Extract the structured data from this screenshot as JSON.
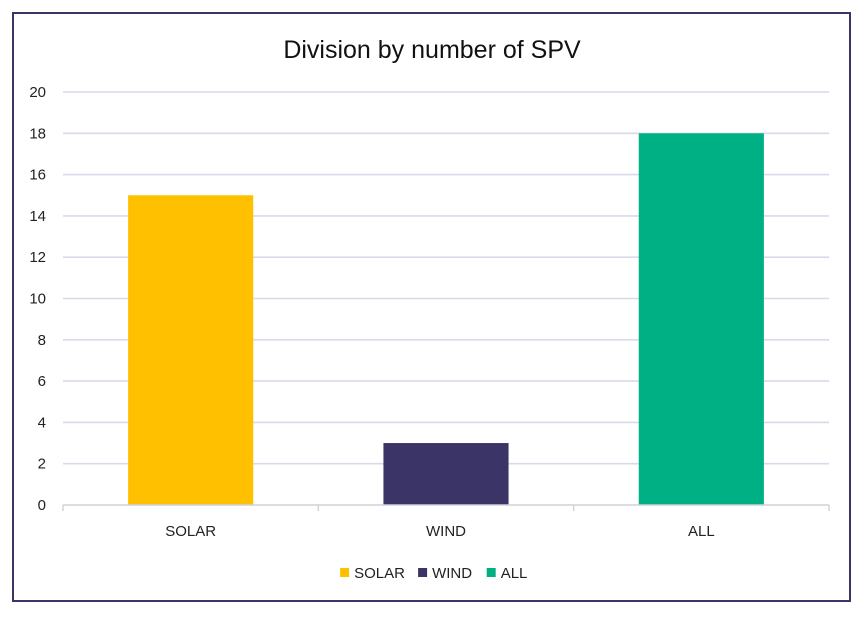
{
  "chart_data": {
    "type": "bar",
    "title": "Division by number of SPV",
    "xlabel": "",
    "ylabel": "",
    "categories": [
      "SOLAR",
      "WIND",
      "ALL"
    ],
    "values": [
      15,
      3,
      18
    ],
    "colors": [
      "#ffc000",
      "#3a3566",
      "#00b085"
    ],
    "ylim": [
      0,
      20
    ],
    "yticks": [
      "0",
      "2",
      "4",
      "6",
      "8",
      "10",
      "12",
      "14",
      "16",
      "18",
      "20"
    ],
    "grid": true,
    "gridline_color": "#d9d9ea",
    "legend": {
      "position": "bottom",
      "entries": [
        "SOLAR",
        "WIND",
        "ALL"
      ]
    }
  }
}
